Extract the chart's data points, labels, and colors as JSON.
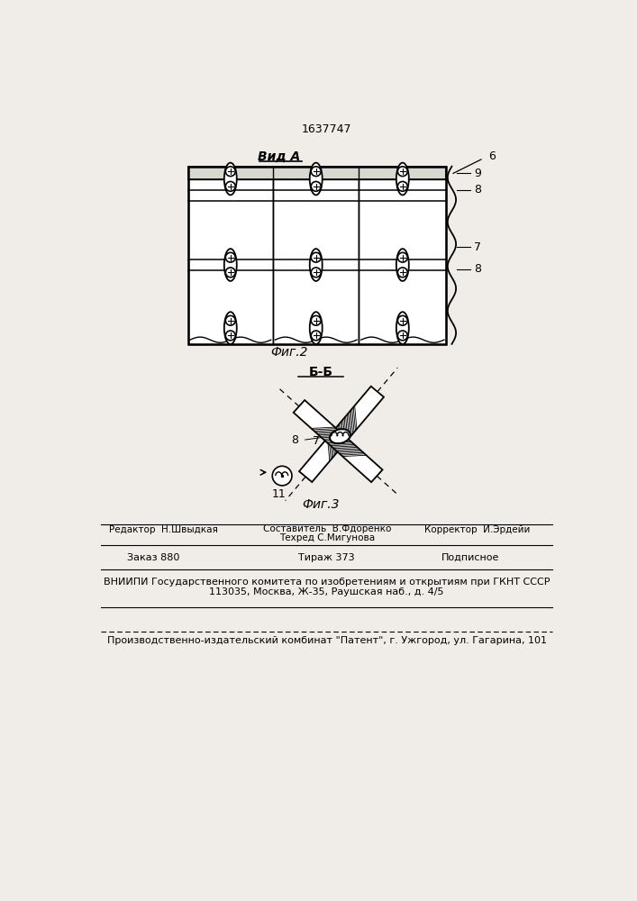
{
  "bg_color": "#f0ede8",
  "patent_number": "1637747",
  "fig2_title": "Вид А",
  "fig2_label": "Фиг.2",
  "fig3_title": "Б-Б",
  "fig3_label": "Фиг.3",
  "label_6": "6",
  "label_7": "7",
  "label_8": "8",
  "label_9": "9",
  "label_11": "11",
  "editor_line": "Редактор  Н.Швыдкая",
  "composer_line": "Составитель  В.Фдоренко",
  "corrector_line": "Корректор  И.Эрдейи",
  "tech_line": "Техред С.Мигунова",
  "order_line": "Заказ 880",
  "tirazh_line": "Тираж 373",
  "podpisnoe_line": "Подписное",
  "vniip_line1": "ВНИИПИ Государственного комитета по изобретениям и открытиям при ГКНТ СССР",
  "vniip_line2": "113035, Москва, Ж-35, Раушская наб., д. 4/5",
  "kombinat_line": "Производственно-издательский комбинат \"Патент\", г. Ужгород, ул. Гагарина, 101"
}
